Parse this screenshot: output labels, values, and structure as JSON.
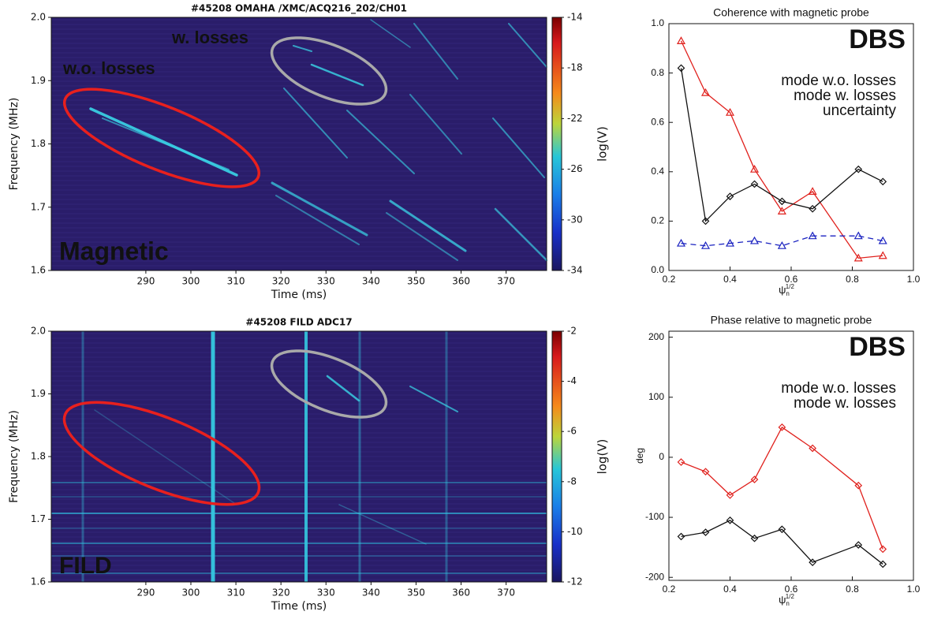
{
  "chart_data": [
    {
      "type": "spectrogram",
      "title": "#45208 OMAHA /XMC/ACQ216_202/CH01",
      "xlabel": "Time (ms)",
      "ylabel": "Frequency (MHz)",
      "xlim": [
        269,
        379
      ],
      "xticks": [
        290,
        300,
        310,
        320,
        330,
        340,
        350,
        360,
        370
      ],
      "ylim": [
        1.6,
        2.0
      ],
      "yticks": [
        1.6,
        1.7,
        1.8,
        1.9,
        {
          "value": 2,
          "label": "2.0"
        }
      ],
      "colorbar": {
        "label": "log(V)",
        "lim": [
          -34,
          -14
        ],
        "ticks": [
          -14,
          -18,
          -22,
          -26,
          -30,
          -34
        ]
      },
      "annotations": [
        {
          "text": "w.o. losses",
          "color": "#e8201e"
        },
        {
          "text": "w. losses",
          "color": "#a9a9a9"
        },
        {
          "text": "Magnetic",
          "color": "#ffffff"
        }
      ]
    },
    {
      "type": "spectrogram",
      "title": "#45208 FILD ADC17",
      "xlabel": "Time (ms)",
      "ylabel": "Frequency (MHz)",
      "xlim": [
        269,
        379
      ],
      "xticks": [
        290,
        300,
        310,
        320,
        330,
        340,
        350,
        360,
        370
      ],
      "ylim": [
        1.6,
        2.0
      ],
      "yticks": [
        1.6,
        1.7,
        1.8,
        1.9,
        {
          "value": 2,
          "label": "2.0"
        }
      ],
      "colorbar": {
        "label": "log(V)",
        "lim": [
          -12,
          -2
        ],
        "ticks": [
          -2,
          -4,
          -6,
          -8,
          -10,
          -12
        ]
      },
      "annotations": [
        {
          "text": "FILD",
          "color": "#ffffff"
        }
      ]
    },
    {
      "type": "line",
      "title": "Coherence with magnetic probe",
      "annotation": "DBS",
      "xlabel": {
        "symbol": "ψ",
        "sub": "n",
        "sup": "1/2"
      },
      "xlim": [
        0.2,
        1
      ],
      "xticks": [
        0.2,
        0.4,
        0.6,
        0.8,
        {
          "value": 1,
          "label": "1.0"
        }
      ],
      "ylim": [
        0,
        1
      ],
      "yticks": [
        {
          "value": 0,
          "label": "0.0"
        },
        0.2,
        0.4,
        0.6,
        0.8,
        {
          "value": 1,
          "label": "1.0"
        }
      ],
      "x": [
        0.24,
        0.32,
        0.4,
        0.48,
        0.57,
        0.67,
        0.82,
        0.9
      ],
      "series": [
        {
          "name": "mode w.o. losses",
          "color": "#e0201c",
          "marker": "triangle",
          "values": [
            0.93,
            0.72,
            0.64,
            0.41,
            0.24,
            0.32,
            0.05,
            0.06
          ]
        },
        {
          "name": "mode w. losses",
          "color": "#111111",
          "marker": "diamond",
          "values": [
            0.82,
            0.2,
            0.3,
            0.35,
            0.28,
            0.25,
            0.41,
            0.36
          ]
        },
        {
          "name": "uncertainty",
          "color": "#1a22c0",
          "marker": "triangle",
          "dashed": true,
          "values": [
            0.11,
            0.1,
            0.11,
            0.12,
            0.1,
            0.14,
            0.14,
            0.12
          ]
        }
      ]
    },
    {
      "type": "line",
      "title": "Phase relative to magnetic probe",
      "annotation": "DBS",
      "ylabel": "deg",
      "xlabel": {
        "symbol": "ψ",
        "sub": "n",
        "sup": "1/2"
      },
      "xlim": [
        0.2,
        1
      ],
      "xticks": [
        0.2,
        0.4,
        0.6,
        0.8,
        {
          "value": 1,
          "label": "1.0"
        }
      ],
      "ylim": [
        -205,
        210
      ],
      "yticks": [
        200,
        100,
        0,
        -100,
        -200
      ],
      "x": [
        0.24,
        0.32,
        0.4,
        0.48,
        0.57,
        0.67,
        0.82,
        0.9
      ],
      "series": [
        {
          "name": "mode w.o. losses",
          "color": "#e0201c",
          "marker": "diamond",
          "values": [
            -8,
            -24,
            -63,
            -37,
            50,
            15,
            -47,
            -153
          ]
        },
        {
          "name": "mode w. losses",
          "color": "#111111",
          "marker": "diamond",
          "values": [
            -132,
            -125,
            -105,
            -135,
            -120,
            -175,
            -146,
            -178
          ]
        }
      ]
    }
  ]
}
